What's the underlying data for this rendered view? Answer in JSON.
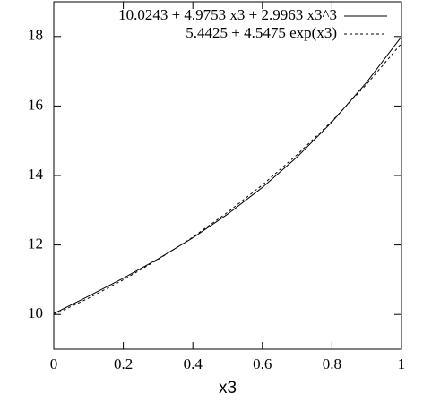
{
  "chart_data": {
    "type": "line",
    "xlabel": "x3",
    "x": [
      0,
      0.1,
      0.2,
      0.3,
      0.4,
      0.5,
      0.6,
      0.7,
      0.8,
      0.9,
      1.0
    ],
    "series": [
      {
        "name": "10.0243 + 4.9753 x3 + 2.9963 x3^3",
        "color": "#000000",
        "dash": "solid",
        "values": [
          10.0243,
          10.5248,
          11.0434,
          11.5978,
          12.2062,
          12.8865,
          13.6567,
          14.5347,
          15.5386,
          16.6864,
          17.9959
        ]
      },
      {
        "name": "5.4425 + 4.5475 exp(x3)",
        "color": "#000000",
        "dash": "dashed",
        "values": [
          9.99,
          10.4683,
          10.9968,
          11.581,
          12.2265,
          12.94,
          13.7286,
          14.6,
          15.5631,
          16.6276,
          17.8039
        ]
      }
    ],
    "xlim": [
      0,
      1
    ],
    "xticks": [
      0,
      0.2,
      0.4,
      0.6,
      0.8,
      1
    ],
    "ylim": [
      9,
      19
    ],
    "yticks": [
      10,
      12,
      14,
      16,
      18
    ],
    "legend": "upper-right"
  }
}
